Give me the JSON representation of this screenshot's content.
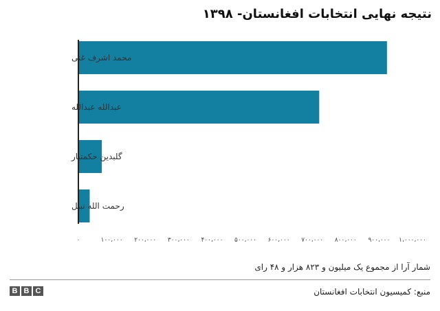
{
  "header": {
    "title": "نتیجه نهایی انتخابات افغانستان- ۱۳۹۸"
  },
  "footer": {
    "note": "شمار آرا از مجموع یک میلیون و ۸۲۳ هزار و ۴۸ رای",
    "source": "منبع: کمیسیون انتخابات افغانستان",
    "logo_letters": [
      "B",
      "B",
      "C"
    ]
  },
  "chart_data": {
    "type": "bar",
    "orientation": "horizontal",
    "title": "نتیجه نهایی انتخابات افغانستان- ۱۳۹۸",
    "categories": [
      "محمد اشرف غنی",
      "عبدالله عبدالله",
      "گلبدین حکمتیار",
      "رحمت الله نبیل"
    ],
    "values": [
      923592,
      720841,
      70241,
      33896
    ],
    "xlim": [
      0,
      1000000
    ],
    "ticks": [
      0,
      100000,
      200000,
      300000,
      400000,
      500000,
      600000,
      700000,
      800000,
      900000,
      1000000
    ],
    "tick_labels": [
      "۰",
      "۱۰۰،۰۰۰",
      "۲۰۰،۰۰۰",
      "۳۰۰،۰۰۰",
      "۴۰۰،۰۰۰",
      "۵۰۰،۰۰۰",
      "۶۰۰،۰۰۰",
      "۷۰۰،۰۰۰",
      "۸۰۰،۰۰۰",
      "۹۰۰،۰۰۰",
      "۱،۰۰۰،۰۰۰"
    ],
    "bar_color": "#1380A1",
    "grid": false
  }
}
